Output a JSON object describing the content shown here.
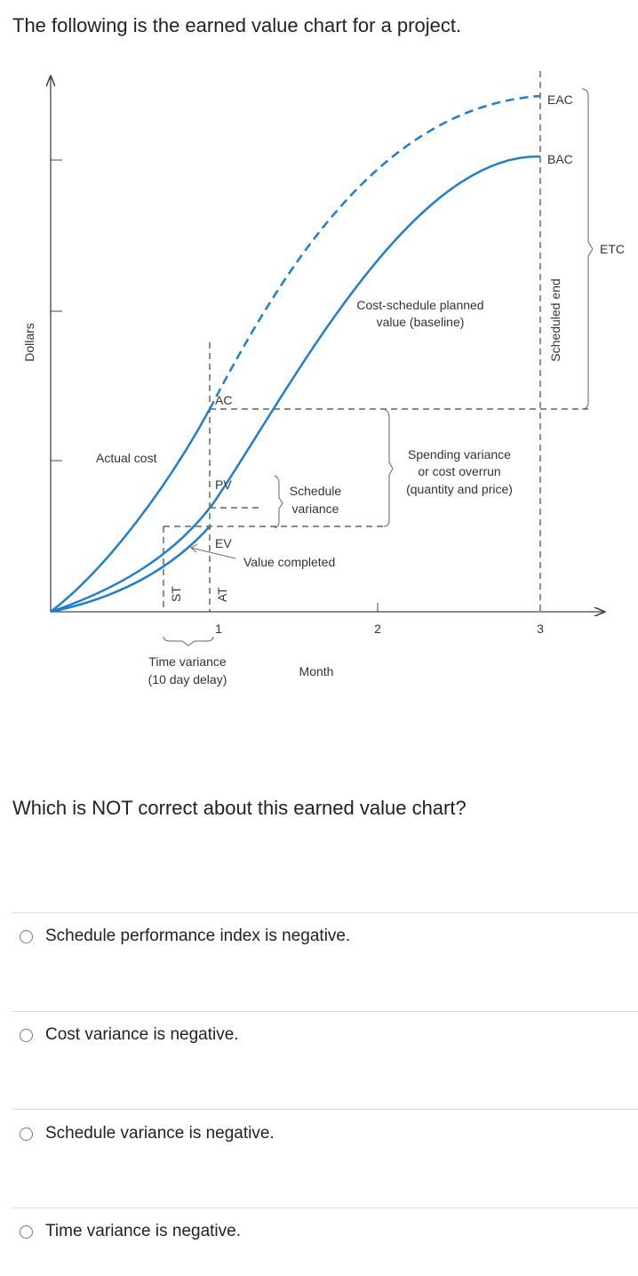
{
  "intro_text": "The following is the earned value chart for a project.",
  "diagram": {
    "y_axis_label": "Dollars",
    "x_axis_label": "Month",
    "x_ticks": [
      "1",
      "2",
      "3"
    ],
    "labels": {
      "eac": "EAC",
      "bac": "BAC",
      "etc": "ETC",
      "scheduled_end": "Scheduled end",
      "baseline_1": "Cost-schedule planned",
      "baseline_2": "value (baseline)",
      "ac": "AC",
      "pv": "PV",
      "ev": "EV",
      "actual_cost": "Actual cost",
      "schedule_variance_1": "Schedule",
      "schedule_variance_2": "variance",
      "spending_variance_1": "Spending variance",
      "spending_variance_2": "or cost overrun",
      "spending_variance_3": "(quantity and price)",
      "value_completed": "Value completed",
      "st": "ST",
      "at": "AT",
      "time_variance_1": "Time variance",
      "time_variance_2": "(10 day delay)"
    },
    "colors": {
      "curve": "#1f7fcc",
      "axis": "#444444"
    }
  },
  "question_text": "Which is NOT correct about this earned value chart?",
  "options": [
    {
      "label": "Schedule performance index is negative."
    },
    {
      "label": "Cost variance is negative."
    },
    {
      "label": "Schedule variance is negative."
    },
    {
      "label": "Time variance is negative."
    }
  ]
}
